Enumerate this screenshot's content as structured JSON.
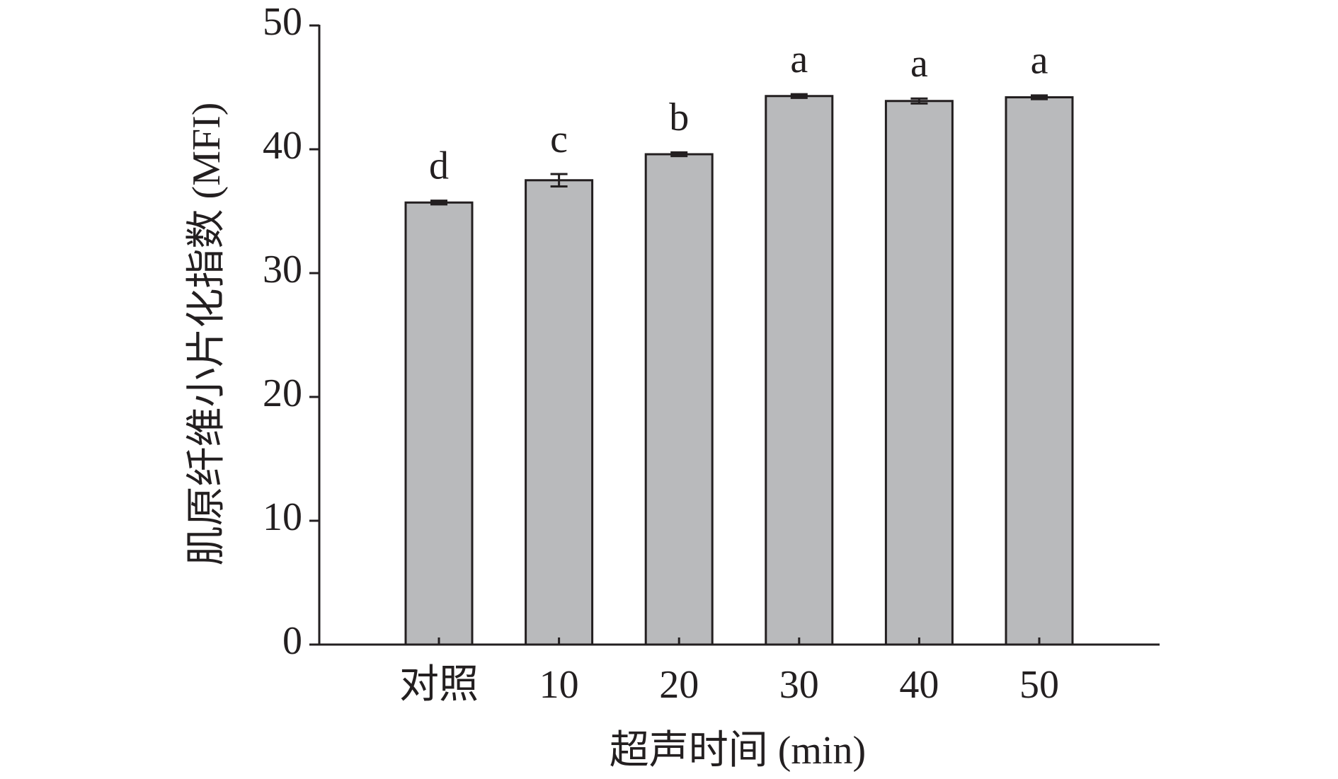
{
  "chart_data": {
    "type": "bar",
    "xlabel": "超声时间 (min)",
    "ylabel": "肌原纤维小片化指数 (MFI)",
    "categories": [
      "对照",
      "10",
      "20",
      "30",
      "40",
      "50"
    ],
    "values": [
      35.7,
      37.5,
      39.6,
      44.3,
      43.9,
      44.2
    ],
    "errors": [
      0.15,
      0.5,
      0.15,
      0.15,
      0.2,
      0.15
    ],
    "annotations": [
      "d",
      "c",
      "b",
      "a",
      "a",
      "a"
    ],
    "color": "#b9babc",
    "ylim": [
      0,
      50
    ],
    "yticks": [
      0,
      10,
      20,
      30,
      40,
      50
    ],
    "grid": false
  }
}
